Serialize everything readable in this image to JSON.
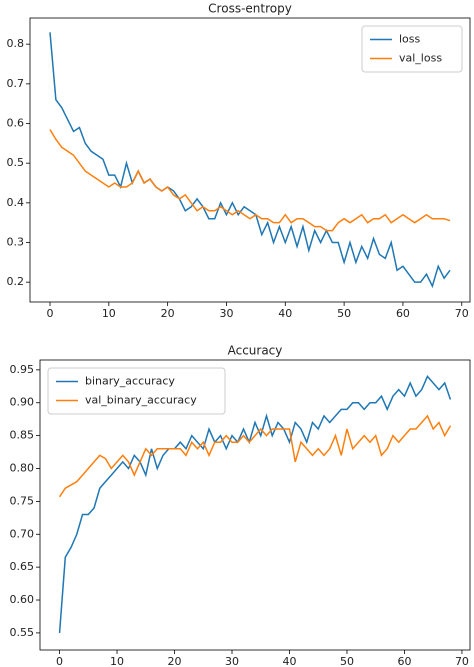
{
  "chart_data": [
    {
      "type": "line",
      "title": "Cross-entropy",
      "x": [
        0,
        1,
        2,
        3,
        4,
        5,
        6,
        7,
        8,
        9,
        10,
        11,
        12,
        13,
        14,
        15,
        16,
        17,
        18,
        19,
        20,
        21,
        22,
        23,
        24,
        25,
        26,
        27,
        28,
        29,
        30,
        31,
        32,
        33,
        34,
        35,
        36,
        37,
        38,
        39,
        40,
        41,
        42,
        43,
        44,
        45,
        46,
        47,
        48,
        49,
        50,
        51,
        52,
        53,
        54,
        55,
        56,
        57,
        58,
        59,
        60,
        61,
        62,
        63,
        64,
        65,
        66,
        67,
        68
      ],
      "series": [
        {
          "name": "loss",
          "color": "#1f77b4",
          "values": [
            0.83,
            0.66,
            0.64,
            0.61,
            0.58,
            0.59,
            0.55,
            0.53,
            0.52,
            0.51,
            0.47,
            0.47,
            0.44,
            0.5,
            0.45,
            0.48,
            0.45,
            0.46,
            0.44,
            0.43,
            0.44,
            0.43,
            0.41,
            0.38,
            0.39,
            0.41,
            0.39,
            0.36,
            0.36,
            0.4,
            0.37,
            0.4,
            0.37,
            0.39,
            0.38,
            0.37,
            0.32,
            0.35,
            0.3,
            0.34,
            0.3,
            0.34,
            0.29,
            0.34,
            0.28,
            0.33,
            0.3,
            0.33,
            0.3,
            0.3,
            0.25,
            0.3,
            0.25,
            0.29,
            0.26,
            0.31,
            0.27,
            0.26,
            0.3,
            0.23,
            0.24,
            0.22,
            0.2,
            0.2,
            0.22,
            0.19,
            0.24,
            0.21,
            0.23
          ]
        },
        {
          "name": "val_loss",
          "color": "#ff7f0e",
          "values": [
            0.585,
            0.56,
            0.54,
            0.53,
            0.52,
            0.5,
            0.48,
            0.47,
            0.46,
            0.45,
            0.44,
            0.45,
            0.44,
            0.44,
            0.45,
            0.48,
            0.45,
            0.46,
            0.44,
            0.43,
            0.44,
            0.42,
            0.41,
            0.42,
            0.4,
            0.38,
            0.39,
            0.38,
            0.38,
            0.39,
            0.38,
            0.37,
            0.38,
            0.37,
            0.36,
            0.37,
            0.36,
            0.36,
            0.35,
            0.35,
            0.37,
            0.35,
            0.36,
            0.36,
            0.35,
            0.34,
            0.34,
            0.33,
            0.33,
            0.35,
            0.36,
            0.35,
            0.36,
            0.37,
            0.35,
            0.36,
            0.36,
            0.37,
            0.35,
            0.36,
            0.37,
            0.36,
            0.35,
            0.36,
            0.37,
            0.36,
            0.36,
            0.36,
            0.355
          ]
        }
      ],
      "xlim": [
        -3.4,
        71.4
      ],
      "ylim": [
        0.15,
        0.866
      ],
      "xticks": [
        0,
        10,
        20,
        30,
        40,
        50,
        60,
        70
      ],
      "yticks": [
        0.2,
        0.3,
        0.4,
        0.5,
        0.6,
        0.7,
        0.8
      ],
      "legend": "upper right"
    },
    {
      "type": "line",
      "title": "Accuracy",
      "x": [
        0,
        1,
        2,
        3,
        4,
        5,
        6,
        7,
        8,
        9,
        10,
        11,
        12,
        13,
        14,
        15,
        16,
        17,
        18,
        19,
        20,
        21,
        22,
        23,
        24,
        25,
        26,
        27,
        28,
        29,
        30,
        31,
        32,
        33,
        34,
        35,
        36,
        37,
        38,
        39,
        40,
        41,
        42,
        43,
        44,
        45,
        46,
        47,
        48,
        49,
        50,
        51,
        52,
        53,
        54,
        55,
        56,
        57,
        58,
        59,
        60,
        61,
        62,
        63,
        64,
        65,
        66,
        67,
        68
      ],
      "series": [
        {
          "name": "binary_accuracy",
          "color": "#1f77b4",
          "values": [
            0.55,
            0.665,
            0.68,
            0.7,
            0.73,
            0.73,
            0.74,
            0.77,
            0.78,
            0.79,
            0.8,
            0.81,
            0.8,
            0.82,
            0.81,
            0.79,
            0.83,
            0.8,
            0.82,
            0.83,
            0.83,
            0.84,
            0.83,
            0.85,
            0.84,
            0.83,
            0.86,
            0.84,
            0.85,
            0.83,
            0.85,
            0.84,
            0.86,
            0.84,
            0.87,
            0.85,
            0.88,
            0.85,
            0.87,
            0.86,
            0.84,
            0.87,
            0.86,
            0.84,
            0.87,
            0.86,
            0.88,
            0.87,
            0.88,
            0.89,
            0.89,
            0.9,
            0.9,
            0.89,
            0.9,
            0.9,
            0.91,
            0.89,
            0.91,
            0.92,
            0.91,
            0.93,
            0.91,
            0.92,
            0.94,
            0.93,
            0.92,
            0.93,
            0.905
          ]
        },
        {
          "name": "val_binary_accuracy",
          "color": "#ff7f0e",
          "values": [
            0.757,
            0.77,
            0.775,
            0.78,
            0.79,
            0.8,
            0.81,
            0.82,
            0.815,
            0.8,
            0.81,
            0.82,
            0.81,
            0.79,
            0.81,
            0.83,
            0.82,
            0.83,
            0.83,
            0.83,
            0.83,
            0.83,
            0.82,
            0.84,
            0.83,
            0.84,
            0.82,
            0.84,
            0.84,
            0.85,
            0.84,
            0.84,
            0.85,
            0.84,
            0.85,
            0.86,
            0.85,
            0.86,
            0.86,
            0.86,
            0.86,
            0.81,
            0.84,
            0.83,
            0.82,
            0.83,
            0.82,
            0.83,
            0.85,
            0.82,
            0.86,
            0.83,
            0.84,
            0.85,
            0.84,
            0.85,
            0.82,
            0.83,
            0.85,
            0.84,
            0.85,
            0.86,
            0.86,
            0.87,
            0.88,
            0.86,
            0.87,
            0.85,
            0.865
          ]
        }
      ],
      "xlim": [
        -3.4,
        71.4
      ],
      "ylim": [
        0.524,
        0.965
      ],
      "xticks": [
        0,
        10,
        20,
        30,
        40,
        50,
        60,
        70
      ],
      "yticks": [
        0.55,
        {
          "value": 0.6,
          "label": "0.60"
        },
        0.65,
        {
          "value": 0.7,
          "label": "0.70"
        },
        0.75,
        {
          "value": 0.8,
          "label": "0.80"
        },
        0.85,
        {
          "value": 0.9,
          "label": "0.90"
        },
        0.95
      ],
      "legend": "upper left"
    }
  ]
}
